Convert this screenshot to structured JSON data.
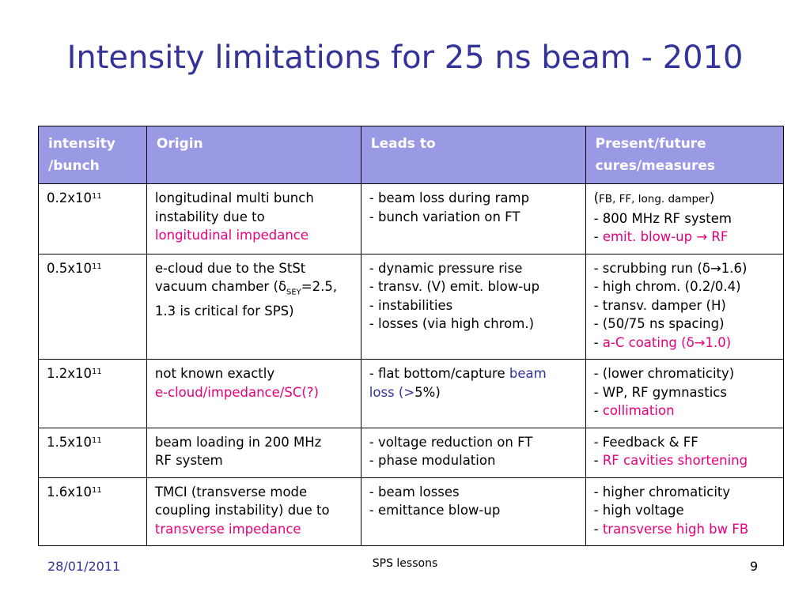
{
  "slide": {
    "title": "Intensity limitations for 25 ns beam - 2010"
  },
  "table": {
    "headers": [
      "intensity /bunch",
      "Origin",
      "Leads to",
      "Present/future cures/measures"
    ],
    "header_col1_line1": "intensity",
    "header_col1_line2": "/bunch",
    "header_col4_line1": "Present/future",
    "header_col4_line2": "cures/measures",
    "rows": [
      {
        "intensity_base": "0.2x10",
        "intensity_exp": "11",
        "origin": [
          "longitudinal multi bunch",
          "instability due to",
          "longitudinal impedance"
        ],
        "leads_to": [
          "- beam loss during ramp",
          "- bunch variation on FT"
        ],
        "cures": [
          "(",
          "FB, FF, long. damper",
          ")",
          "- 800 MHz RF system",
          "- ",
          "emit. blow-up → RF"
        ]
      },
      {
        "intensity_base": "0.5x10",
        "intensity_exp": "11",
        "origin": [
          "e-cloud due to the StSt",
          "vacuum chamber (",
          "δ",
          "SEY",
          "=2.5,",
          "1.3 is critical for SPS)"
        ],
        "leads_to": [
          "- dynamic pressure rise",
          "- transv. (V) emit. blow-up",
          "- instabilities",
          "- losses (via high chrom.)"
        ],
        "cures": [
          "- scrubbing run (δ→1.6)",
          "- high chrom. (0.2/0.4)",
          "- transv. damper (H)",
          "- (50/75 ns spacing)",
          "- ",
          "a-C coating (δ→1.0)"
        ]
      },
      {
        "intensity_base": "1.2x10",
        "intensity_exp": "11",
        "origin": [
          "not known exactly",
          "e-cloud/impedance/SC(?)"
        ],
        "leads_to": [
          "- flat bottom/capture ",
          "beam",
          "loss (>",
          "5%)"
        ],
        "cures": [
          "- (lower chromaticity)",
          "- WP, RF gymnastics",
          "- ",
          "collimation"
        ]
      },
      {
        "intensity_base": "1.5x10",
        "intensity_exp": "11",
        "origin": [
          "beam loading in 200 MHz",
          "RF system"
        ],
        "leads_to": [
          "- voltage reduction on FT",
          "- phase modulation"
        ],
        "cures": [
          "- Feedback & FF",
          "- ",
          "RF cavities shortening"
        ]
      },
      {
        "intensity_base": "1.6x10",
        "intensity_exp": "11",
        "origin": [
          "TMCI (transverse mode",
          "coupling instability) due to",
          "transverse impedance"
        ],
        "leads_to": [
          "- beam losses",
          "- emittance blow-up"
        ],
        "cures": [
          "- higher chromaticity",
          "- high voltage",
          "- ",
          "transverse high bw FB"
        ]
      }
    ]
  },
  "footer": {
    "date": "28/01/2011",
    "center": "SPS lessons",
    "page_number": "9"
  },
  "colors": {
    "title": "#333399",
    "header_bg": "#9a9ae4",
    "highlight_magenta": "#e6007e",
    "highlight_blue": "#333399"
  }
}
